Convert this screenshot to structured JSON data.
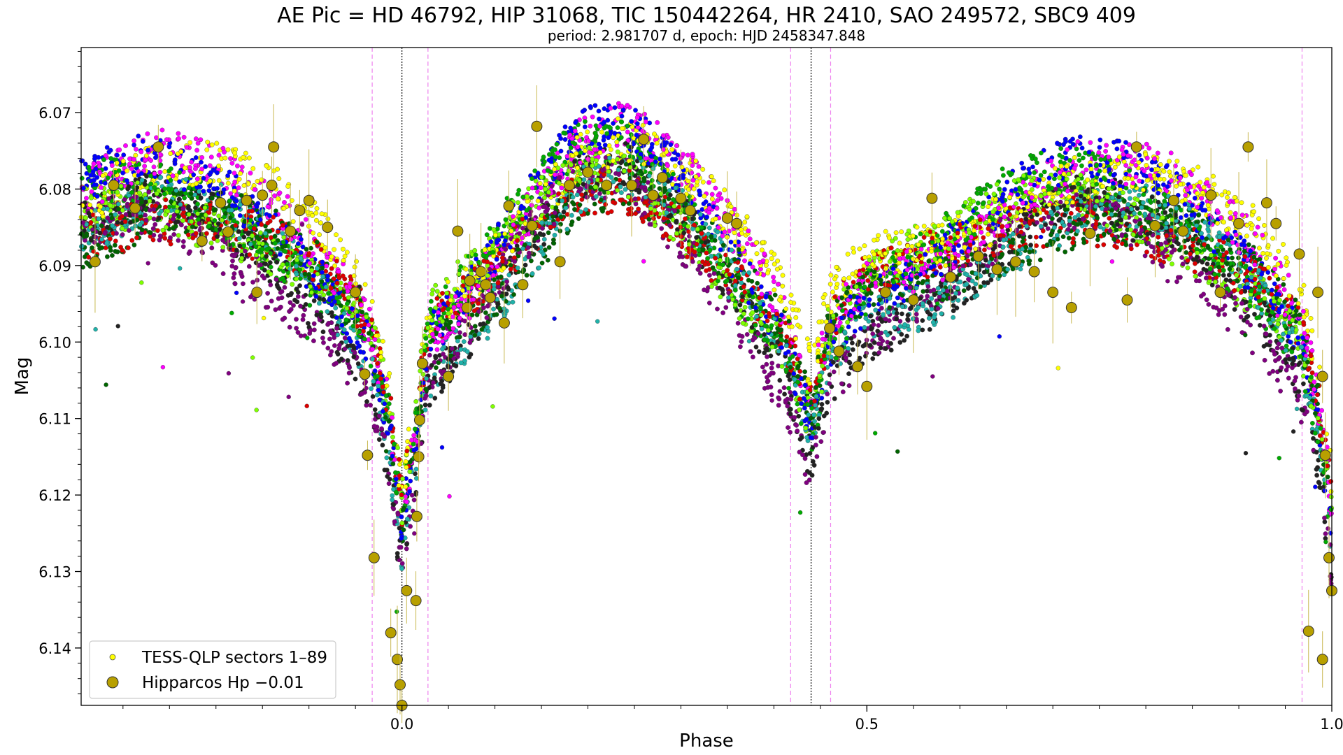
{
  "chart_data": {
    "type": "scatter",
    "title": "AE Pic = HD 46792, HIP 31068, TIC 150442264, HR 2410, SAO 249572, SBC9 409",
    "subtitle": "period: 2.981707 d, epoch: HJD 2458347.848",
    "xlabel": "Phase",
    "ylabel": "Mag",
    "xlim": [
      -0.345,
      1.0
    ],
    "ylim": [
      6.1475,
      6.0615
    ],
    "y_inverted": true,
    "x_ticks": [
      0.0,
      0.5,
      1.0
    ],
    "x_tick_labels": [
      "0.0",
      "0.5",
      "1.0"
    ],
    "y_ticks": [
      6.07,
      6.08,
      6.09,
      6.1,
      6.11,
      6.12,
      6.13,
      6.14
    ],
    "y_tick_labels": [
      "6.07",
      "6.08",
      "6.09",
      "6.10",
      "6.11",
      "6.12",
      "6.13",
      "6.14"
    ],
    "grid": false,
    "legend_position": "bottom-left",
    "vlines": [
      {
        "x": -0.032,
        "style": "dashed",
        "color": "#ee82ee"
      },
      {
        "x": 0.0,
        "style": "dotted",
        "color": "#000000"
      },
      {
        "x": 0.028,
        "style": "dashed",
        "color": "#ee82ee"
      },
      {
        "x": 0.418,
        "style": "dashed",
        "color": "#ee82ee"
      },
      {
        "x": 0.44,
        "style": "dotted",
        "color": "#000000"
      },
      {
        "x": 0.461,
        "style": "dashed",
        "color": "#ee82ee"
      },
      {
        "x": 0.968,
        "style": "dashed",
        "color": "#ee82ee"
      }
    ],
    "series": [
      {
        "name": "TESS-QLP sectors 1–89",
        "color": "#ffff00",
        "marker": "small-circle"
      },
      {
        "name": "Hipparcos Hp −0.01",
        "color": "#b8a000",
        "marker": "large-circle"
      }
    ],
    "sector_colors": [
      "#ffff00",
      "#ff00ff",
      "#0000ff",
      "#00aa00",
      "#7fff00",
      "#dd0000",
      "#006400",
      "#20b2aa",
      "#222222",
      "#800080"
    ],
    "hipparcos_points": [
      [
        -0.33,
        6.0895
      ],
      [
        -0.31,
        6.0795
      ],
      [
        -0.287,
        6.0825
      ],
      [
        -0.262,
        6.0745
      ],
      [
        -0.215,
        6.0868
      ],
      [
        -0.195,
        6.0818
      ],
      [
        -0.187,
        6.0856
      ],
      [
        -0.167,
        6.0815
      ],
      [
        -0.156,
        6.0935
      ],
      [
        -0.15,
        6.0808
      ],
      [
        -0.138,
        6.0745
      ],
      [
        -0.14,
        6.0795
      ],
      [
        -0.12,
        6.0855
      ],
      [
        -0.11,
        6.0828
      ],
      [
        -0.1,
        6.0815
      ],
      [
        -0.08,
        6.085
      ],
      [
        -0.05,
        6.0935
      ],
      [
        -0.04,
        6.1042
      ],
      [
        -0.037,
        6.1148
      ],
      [
        -0.03,
        6.1282
      ],
      [
        -0.012,
        6.138
      ],
      [
        -0.005,
        6.1415
      ],
      [
        -0.002,
        6.1448
      ],
      [
        0.0,
        6.1475
      ],
      [
        0.005,
        6.1325
      ],
      [
        0.015,
        6.1338
      ],
      [
        0.016,
        6.1228
      ],
      [
        0.018,
        6.115
      ],
      [
        0.019,
        6.1102
      ],
      [
        0.022,
        6.1028
      ],
      [
        0.05,
        6.1045
      ],
      [
        0.06,
        6.0855
      ],
      [
        0.07,
        6.0955
      ],
      [
        0.073,
        6.092
      ],
      [
        0.085,
        6.0908
      ],
      [
        0.09,
        6.0925
      ],
      [
        0.095,
        6.0942
      ],
      [
        0.11,
        6.0975
      ],
      [
        0.115,
        6.0822
      ],
      [
        0.13,
        6.0925
      ],
      [
        0.14,
        6.0848
      ],
      [
        0.145,
        6.0718
      ],
      [
        0.17,
        6.0895
      ],
      [
        0.18,
        6.0795
      ],
      [
        0.2,
        6.0778
      ],
      [
        0.22,
        6.0795
      ],
      [
        0.247,
        6.0795
      ],
      [
        0.26,
        6.0735
      ],
      [
        0.27,
        6.0808
      ],
      [
        0.28,
        6.0785
      ],
      [
        0.3,
        6.0812
      ],
      [
        0.31,
        6.0828
      ],
      [
        0.35,
        6.0838
      ],
      [
        0.36,
        6.0845
      ],
      [
        0.46,
        6.0982
      ],
      [
        0.47,
        6.1012
      ],
      [
        0.49,
        6.1032
      ],
      [
        0.5,
        6.1058
      ],
      [
        0.52,
        6.0935
      ],
      [
        0.55,
        6.0945
      ],
      [
        0.57,
        6.0812
      ],
      [
        0.59,
        6.0915
      ],
      [
        0.62,
        6.0888
      ],
      [
        0.64,
        6.0905
      ],
      [
        0.66,
        6.0895
      ],
      [
        0.68,
        6.0908
      ],
      [
        0.7,
        6.0935
      ],
      [
        0.72,
        6.0955
      ],
      [
        0.74,
        6.0858
      ],
      [
        0.78,
        6.0945
      ],
      [
        0.79,
        6.0745
      ],
      [
        0.81,
        6.0848
      ],
      [
        0.83,
        6.0815
      ],
      [
        0.84,
        6.0855
      ],
      [
        0.87,
        6.0808
      ],
      [
        0.88,
        6.0935
      ],
      [
        0.9,
        6.0845
      ],
      [
        0.91,
        6.0745
      ],
      [
        0.93,
        6.0818
      ],
      [
        0.94,
        6.0845
      ],
      [
        0.965,
        6.0885
      ],
      [
        0.985,
        6.0935
      ],
      [
        0.99,
        6.1045
      ],
      [
        0.993,
        6.1148
      ],
      [
        0.997,
        6.1282
      ],
      [
        1.0,
        6.1325
      ],
      [
        0.975,
        6.1378
      ],
      [
        0.99,
        6.1415
      ]
    ]
  }
}
